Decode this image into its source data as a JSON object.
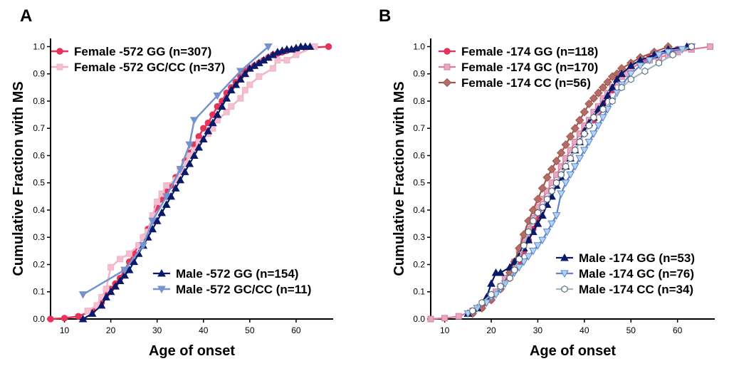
{
  "chart_data": [
    {
      "panel": "A",
      "type": "line",
      "xlabel": "Age of onset",
      "ylabel": "Cumulative Fraction with MS",
      "xlim": [
        7,
        68
      ],
      "ylim": [
        0,
        1.03
      ],
      "xticks": [
        10,
        20,
        30,
        40,
        50,
        60
      ],
      "yticks": [
        0.0,
        0.1,
        0.2,
        0.3,
        0.4,
        0.5,
        0.6,
        0.7,
        0.8,
        0.9,
        1.0
      ],
      "ytick_labels": [
        "0.0",
        "0.1",
        "0.2",
        "0.3",
        "0.4",
        "0.5",
        "0.6",
        "0.7",
        "0.8",
        "0.9",
        "1.0"
      ],
      "legend_groups": [
        {
          "position": "top-left",
          "items": [
            0,
            1
          ]
        },
        {
          "position": "bottom-right",
          "items": [
            2,
            3
          ]
        }
      ],
      "series": [
        {
          "name": "Female -572 GG (n=307)",
          "color": "#e8325a",
          "marker": "circle",
          "marker_fill": "#e8325a",
          "lw": 2.5,
          "x": [
            7,
            10,
            13,
            16,
            18,
            19,
            20,
            21,
            22,
            23,
            24,
            25,
            26,
            27,
            28,
            29,
            30,
            31,
            32,
            33,
            34,
            35,
            36,
            37,
            38,
            39,
            40,
            41,
            42,
            43,
            44,
            45,
            46,
            47,
            48,
            49,
            50,
            51,
            52,
            53,
            54,
            55,
            56,
            57,
            58,
            60,
            62,
            67
          ],
          "y": [
            0.0,
            0.003,
            0.01,
            0.03,
            0.06,
            0.09,
            0.11,
            0.13,
            0.15,
            0.18,
            0.21,
            0.24,
            0.27,
            0.3,
            0.33,
            0.37,
            0.41,
            0.44,
            0.47,
            0.49,
            0.52,
            0.55,
            0.58,
            0.61,
            0.64,
            0.67,
            0.7,
            0.72,
            0.75,
            0.78,
            0.8,
            0.83,
            0.85,
            0.87,
            0.89,
            0.91,
            0.92,
            0.93,
            0.94,
            0.95,
            0.96,
            0.97,
            0.975,
            0.98,
            0.985,
            0.99,
            0.995,
            1.0
          ]
        },
        {
          "name": "Female -572 GC/CC (n=37)",
          "color": "#f2b3c6",
          "marker": "square",
          "marker_fill": "#f4bfcf",
          "lw": 2.5,
          "x": [
            15,
            17,
            18,
            19,
            20,
            22,
            24,
            26,
            27,
            28,
            29,
            30,
            31,
            32,
            34,
            35,
            36,
            37,
            38,
            39,
            41,
            42,
            43,
            45,
            46,
            48,
            49,
            50,
            52,
            55,
            56,
            58,
            60,
            64
          ],
          "y": [
            0.03,
            0.05,
            0.08,
            0.11,
            0.19,
            0.22,
            0.24,
            0.27,
            0.3,
            0.32,
            0.38,
            0.43,
            0.46,
            0.49,
            0.51,
            0.54,
            0.57,
            0.6,
            0.62,
            0.65,
            0.68,
            0.7,
            0.73,
            0.76,
            0.78,
            0.81,
            0.84,
            0.86,
            0.89,
            0.92,
            0.95,
            0.95,
            0.97,
            1.0
          ]
        },
        {
          "name": "Male -572 GG (n=154)",
          "color": "#0a1a6a",
          "marker": "triangle-up",
          "marker_fill": "#0a1a6a",
          "lw": 2.2,
          "x": [
            14,
            16,
            18,
            19,
            20,
            21,
            22,
            23,
            24,
            25,
            26,
            27,
            28,
            29,
            30,
            31,
            32,
            33,
            34,
            35,
            36,
            37,
            38,
            39,
            40,
            41,
            42,
            43,
            44,
            45,
            46,
            47,
            48,
            49,
            50,
            51,
            52,
            53,
            54,
            55,
            56,
            57,
            58,
            59,
            60,
            61,
            62,
            63
          ],
          "y": [
            0.0,
            0.02,
            0.05,
            0.08,
            0.1,
            0.12,
            0.14,
            0.16,
            0.18,
            0.21,
            0.24,
            0.27,
            0.3,
            0.33,
            0.36,
            0.39,
            0.42,
            0.45,
            0.48,
            0.51,
            0.54,
            0.57,
            0.6,
            0.63,
            0.66,
            0.69,
            0.72,
            0.75,
            0.78,
            0.81,
            0.84,
            0.86,
            0.88,
            0.9,
            0.92,
            0.93,
            0.94,
            0.95,
            0.96,
            0.97,
            0.98,
            0.985,
            0.99,
            0.99,
            0.995,
            1.0,
            1.0,
            1.0
          ]
        },
        {
          "name": "Male -572 GC/CC (n=11)",
          "color": "#7492d0",
          "marker": "triangle-down",
          "marker_fill": "#7492d0",
          "lw": 2.5,
          "x": [
            14,
            23,
            27,
            29,
            32,
            35,
            37,
            38,
            43,
            48,
            54
          ],
          "y": [
            0.09,
            0.18,
            0.27,
            0.36,
            0.45,
            0.55,
            0.64,
            0.73,
            0.82,
            0.91,
            1.0
          ]
        }
      ]
    },
    {
      "panel": "B",
      "type": "line",
      "xlabel": "Age of onset",
      "ylabel": "Cumulative Fraction with MS",
      "xlim": [
        7,
        68
      ],
      "ylim": [
        0,
        1.03
      ],
      "xticks": [
        10,
        20,
        30,
        40,
        50,
        60
      ],
      "yticks": [
        0.0,
        0.1,
        0.2,
        0.3,
        0.4,
        0.5,
        0.6,
        0.7,
        0.8,
        0.9,
        1.0
      ],
      "ytick_labels": [
        "0.0",
        "0.1",
        "0.2",
        "0.3",
        "0.4",
        "0.5",
        "0.6",
        "0.7",
        "0.8",
        "0.9",
        "1.0"
      ],
      "legend_groups": [
        {
          "position": "top-left",
          "items": [
            0,
            1,
            2
          ]
        },
        {
          "position": "bottom-right",
          "items": [
            3,
            4,
            5
          ]
        }
      ],
      "series": [
        {
          "name": "Female -174 GG (n=118)",
          "color": "#e8325a",
          "marker": "circle",
          "marker_fill": "#e8325a",
          "lw": 2.2,
          "x": [
            16,
            18,
            20,
            22,
            24,
            25,
            26,
            27,
            28,
            29,
            30,
            31,
            32,
            33,
            34,
            35,
            36,
            37,
            38,
            39,
            40,
            41,
            42,
            43,
            44,
            45,
            46,
            47,
            48,
            50,
            52,
            54,
            56,
            58,
            60,
            63
          ],
          "y": [
            0.02,
            0.04,
            0.07,
            0.11,
            0.15,
            0.18,
            0.21,
            0.25,
            0.29,
            0.33,
            0.37,
            0.41,
            0.44,
            0.47,
            0.5,
            0.53,
            0.56,
            0.59,
            0.62,
            0.65,
            0.68,
            0.71,
            0.73,
            0.76,
            0.79,
            0.82,
            0.84,
            0.87,
            0.89,
            0.92,
            0.94,
            0.96,
            0.97,
            0.98,
            0.99,
            1.0
          ]
        },
        {
          "name": "Female -174 GC (n=170)",
          "color": "#d97ca1",
          "marker": "square",
          "marker_fill": "#e8a6c0",
          "lw": 2.2,
          "x": [
            7,
            10,
            13,
            16,
            18,
            20,
            21,
            22,
            23,
            24,
            25,
            26,
            27,
            28,
            29,
            30,
            31,
            32,
            33,
            34,
            35,
            36,
            37,
            38,
            39,
            40,
            41,
            42,
            43,
            44,
            45,
            46,
            47,
            48,
            49,
            50,
            52,
            54,
            56,
            58,
            60,
            63,
            67
          ],
          "y": [
            0.0,
            0.003,
            0.01,
            0.03,
            0.05,
            0.08,
            0.1,
            0.12,
            0.15,
            0.18,
            0.21,
            0.25,
            0.29,
            0.33,
            0.37,
            0.41,
            0.44,
            0.47,
            0.5,
            0.53,
            0.56,
            0.59,
            0.62,
            0.65,
            0.68,
            0.71,
            0.73,
            0.76,
            0.78,
            0.81,
            0.83,
            0.85,
            0.87,
            0.89,
            0.9,
            0.92,
            0.94,
            0.95,
            0.96,
            0.97,
            0.98,
            0.99,
            1.0
          ]
        },
        {
          "name": "Female -174 CC (n=56)",
          "color": "#a0584e",
          "marker": "diamond",
          "marker_fill": "#b56c66",
          "lw": 2.2,
          "x": [
            16,
            18,
            20,
            22,
            24,
            25,
            26,
            27,
            28,
            29,
            30,
            31,
            32,
            33,
            34,
            35,
            36,
            37,
            38,
            39,
            40,
            41,
            42,
            43,
            44,
            45,
            46,
            47,
            48,
            50,
            52,
            55,
            58
          ],
          "y": [
            0.02,
            0.04,
            0.07,
            0.11,
            0.17,
            0.21,
            0.26,
            0.31,
            0.36,
            0.4,
            0.44,
            0.48,
            0.52,
            0.55,
            0.58,
            0.61,
            0.64,
            0.67,
            0.7,
            0.73,
            0.76,
            0.79,
            0.81,
            0.83,
            0.85,
            0.87,
            0.89,
            0.9,
            0.92,
            0.94,
            0.96,
            0.98,
            1.0
          ]
        },
        {
          "name": "Male -174 GG (n=53)",
          "color": "#0a1a6a",
          "marker": "triangle-up",
          "marker_fill": "#0a1a6a",
          "lw": 2.2,
          "x": [
            15,
            17,
            19,
            20,
            21,
            22,
            24,
            25,
            26,
            27,
            28,
            29,
            30,
            31,
            32,
            33,
            34,
            35,
            36,
            37,
            38,
            39,
            40,
            41,
            42,
            43,
            44,
            45,
            46,
            47,
            48,
            50,
            52,
            55,
            58,
            62
          ],
          "y": [
            0.02,
            0.04,
            0.08,
            0.13,
            0.17,
            0.17,
            0.19,
            0.21,
            0.23,
            0.26,
            0.29,
            0.32,
            0.35,
            0.38,
            0.42,
            0.45,
            0.49,
            0.52,
            0.56,
            0.59,
            0.62,
            0.65,
            0.69,
            0.72,
            0.74,
            0.77,
            0.79,
            0.82,
            0.85,
            0.88,
            0.9,
            0.93,
            0.95,
            0.97,
            0.99,
            1.0
          ]
        },
        {
          "name": "Male -174 GC (n=76)",
          "color": "#5b85cf",
          "marker": "triangle-down",
          "marker_fill": "#b3d3ee",
          "lw": 2.2,
          "x": [
            15,
            17,
            19,
            20,
            21,
            22,
            23,
            24,
            25,
            26,
            27,
            28,
            29,
            30,
            31,
            32,
            33,
            34,
            35,
            36,
            37,
            38,
            39,
            40,
            41,
            42,
            43,
            44,
            45,
            46,
            47,
            48,
            50,
            52,
            54,
            56,
            58,
            61,
            63
          ],
          "y": [
            0.02,
            0.04,
            0.06,
            0.08,
            0.09,
            0.11,
            0.13,
            0.15,
            0.17,
            0.19,
            0.21,
            0.23,
            0.25,
            0.27,
            0.29,
            0.32,
            0.35,
            0.38,
            0.46,
            0.5,
            0.53,
            0.56,
            0.59,
            0.62,
            0.65,
            0.68,
            0.71,
            0.74,
            0.77,
            0.8,
            0.83,
            0.86,
            0.9,
            0.93,
            0.95,
            0.97,
            0.98,
            0.99,
            1.0
          ]
        },
        {
          "name": "Male -174 CC (n=34)",
          "color": "#9fb8c4",
          "marker": "hexagon",
          "marker_fill": "#ffffff",
          "lw": 2.2,
          "x": [
            16,
            18,
            20,
            22,
            24,
            25,
            26,
            27,
            28,
            29,
            30,
            31,
            32,
            33,
            34,
            35,
            36,
            37,
            38,
            39,
            40,
            41,
            42,
            44,
            46,
            48,
            50,
            53,
            56,
            59,
            63
          ],
          "y": [
            0.03,
            0.06,
            0.09,
            0.12,
            0.15,
            0.18,
            0.22,
            0.27,
            0.32,
            0.36,
            0.39,
            0.41,
            0.44,
            0.47,
            0.5,
            0.53,
            0.56,
            0.59,
            0.62,
            0.65,
            0.68,
            0.71,
            0.74,
            0.77,
            0.8,
            0.85,
            0.88,
            0.91,
            0.94,
            0.97,
            1.0
          ]
        }
      ]
    }
  ]
}
